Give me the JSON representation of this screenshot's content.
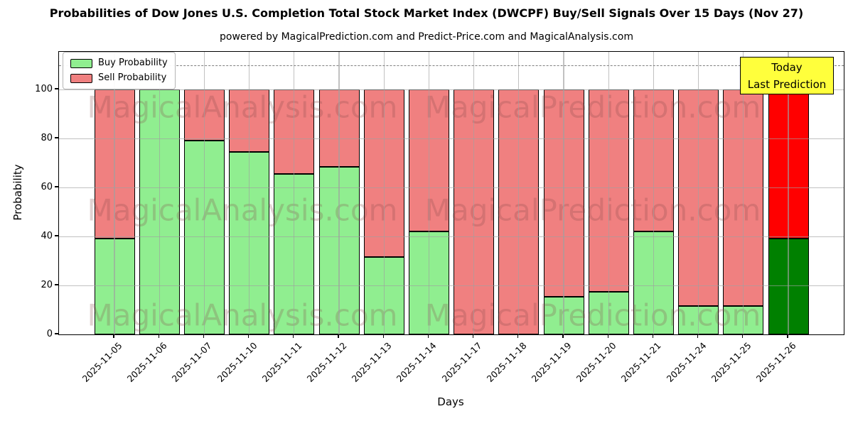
{
  "title": "Probabilities of Dow Jones U.S. Completion Total Stock Market Index (DWCPF) Buy/Sell Signals Over 15 Days (Nov 27)",
  "subtitle": "powered by MagicalPrediction.com and Predict-Price.com and MagicalAnalysis.com",
  "axes": {
    "ylabel": "Probability",
    "xlabel": "Days",
    "yticks": [
      0,
      20,
      40,
      60,
      80,
      100
    ],
    "grid": true,
    "legend_position": "upper left"
  },
  "legend": {
    "items": [
      {
        "label": "Buy Probability",
        "color": "#90EE90"
      },
      {
        "label": "Sell Probability",
        "color": "#F08080"
      }
    ]
  },
  "annotation": {
    "line1": "Today",
    "line2": "Last Prediction",
    "bg_color": "#ffff3c",
    "border_color": "#000000"
  },
  "watermarks": [
    "MagicalAnalysis.com",
    "MagicalPrediction.com"
  ],
  "chart_data": {
    "type": "bar",
    "stacked": true,
    "title": "Probabilities of Dow Jones U.S. Completion Total Stock Market Index (DWCPF) Buy/Sell Signals Over 15 Days (Nov 27)",
    "xlabel": "Days",
    "ylabel": "Probability",
    "ylim": [
      0,
      115
    ],
    "dashed_line_y": 110,
    "bar_edge_color": "#000000",
    "categories": [
      "2025-11-05",
      "2025-11-06",
      "2025-11-07",
      "2025-11-10",
      "2025-11-11",
      "2025-11-12",
      "2025-11-13",
      "2025-11-14",
      "2025-11-17",
      "2025-11-18",
      "2025-11-19",
      "2025-11-20",
      "2025-11-21",
      "2025-11-24",
      "2025-11-25",
      "2025-11-26"
    ],
    "series": [
      {
        "name": "Buy Probability",
        "color": "#90EE90",
        "values": [
          39,
          100,
          79,
          74.5,
          65.5,
          68.5,
          31.5,
          42,
          0,
          0,
          15.5,
          17.5,
          42,
          11.5,
          11.5,
          39
        ]
      },
      {
        "name": "Sell Probability",
        "color": "#F08080",
        "values": [
          61,
          0,
          21,
          25.5,
          34.5,
          31.5,
          68.5,
          58,
          100,
          100,
          84.5,
          82.5,
          58,
          88.5,
          88.5,
          61
        ]
      }
    ],
    "today_bar_index": 15,
    "today_colors": {
      "buy": "#008000",
      "sell": "#FF0000"
    }
  }
}
